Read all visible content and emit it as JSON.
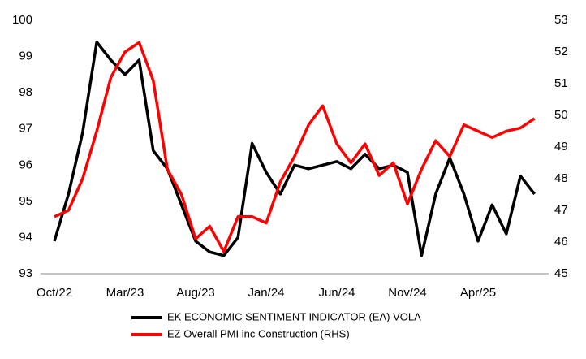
{
  "chart_data": {
    "type": "line",
    "categories": [
      "Oct/22",
      null,
      null,
      null,
      null,
      "Mar/23",
      null,
      null,
      null,
      null,
      "Aug/23",
      null,
      null,
      null,
      null,
      "Jan/24",
      null,
      null,
      null,
      null,
      "Jun/24",
      null,
      null,
      null,
      null,
      "Nov/24",
      null,
      null,
      null,
      null,
      "Apr/25",
      null,
      null,
      null,
      null
    ],
    "series": [
      {
        "name": "EK ECONOMIC SENTIMENT INDICATOR (EA) VOLA",
        "color": "#000000",
        "values": [
          93.9,
          95.2,
          96.9,
          99.4,
          98.9,
          98.5,
          98.9,
          96.4,
          95.9,
          94.9,
          93.9,
          93.6,
          93.5,
          94.0,
          96.6,
          95.8,
          95.2,
          96.0,
          95.9,
          96.0,
          96.1,
          95.9,
          96.3,
          95.9,
          96.0,
          95.8,
          93.5,
          95.2,
          96.2,
          95.2,
          93.9,
          94.9,
          94.1,
          95.7,
          95.2
        ]
      },
      {
        "name": "EZ Overall PMI inc Construction (RHS)",
        "color": "#ff0000",
        "axis": "y2",
        "values": [
          46.8,
          47.0,
          48.0,
          49.5,
          51.2,
          52.0,
          52.3,
          51.1,
          48.3,
          47.5,
          46.1,
          46.5,
          45.7,
          46.8,
          46.8,
          46.6,
          47.9,
          48.7,
          49.7,
          50.3,
          49.1,
          48.5,
          49.1,
          48.1,
          48.5,
          47.2,
          48.3,
          49.2,
          48.7,
          49.7,
          49.5,
          49.3,
          49.5,
          49.6,
          49.9
        ]
      }
    ],
    "ylim": [
      93,
      100
    ],
    "yticks": [
      93,
      94,
      95,
      96,
      97,
      98,
      99,
      100
    ],
    "y2lim": [
      45,
      53
    ],
    "y2ticks": [
      45,
      46,
      47,
      48,
      49,
      50,
      51,
      52,
      53
    ],
    "grid": false,
    "legend": "bottom"
  }
}
